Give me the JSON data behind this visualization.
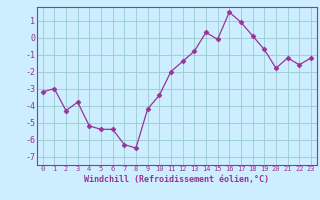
{
  "x": [
    0,
    1,
    2,
    3,
    4,
    5,
    6,
    7,
    8,
    9,
    10,
    11,
    12,
    13,
    14,
    15,
    16,
    17,
    18,
    19,
    20,
    21,
    22,
    23
  ],
  "y": [
    -3.2,
    -3.0,
    -4.3,
    -3.8,
    -5.2,
    -5.4,
    -5.4,
    -6.3,
    -6.5,
    -4.2,
    -3.4,
    -2.0,
    -1.4,
    -0.8,
    0.3,
    -0.1,
    1.5,
    0.9,
    0.1,
    -0.7,
    -1.8,
    -1.2,
    -1.6,
    -1.2
  ],
  "line_color": "#993399",
  "marker": "D",
  "marker_size": 2.5,
  "xlabel": "Windchill (Refroidissement éolien,°C)",
  "xlim": [
    -0.5,
    23.5
  ],
  "ylim": [
    -7.5,
    1.8
  ],
  "yticks": [
    -7,
    -6,
    -5,
    -4,
    -3,
    -2,
    -1,
    0,
    1
  ],
  "xticks": [
    0,
    1,
    2,
    3,
    4,
    5,
    6,
    7,
    8,
    9,
    10,
    11,
    12,
    13,
    14,
    15,
    16,
    17,
    18,
    19,
    20,
    21,
    22,
    23
  ],
  "bg_color": "#cceeff",
  "grid_color": "#99cccc",
  "tick_color": "#993399",
  "label_color": "#993399",
  "spine_color": "#993399"
}
